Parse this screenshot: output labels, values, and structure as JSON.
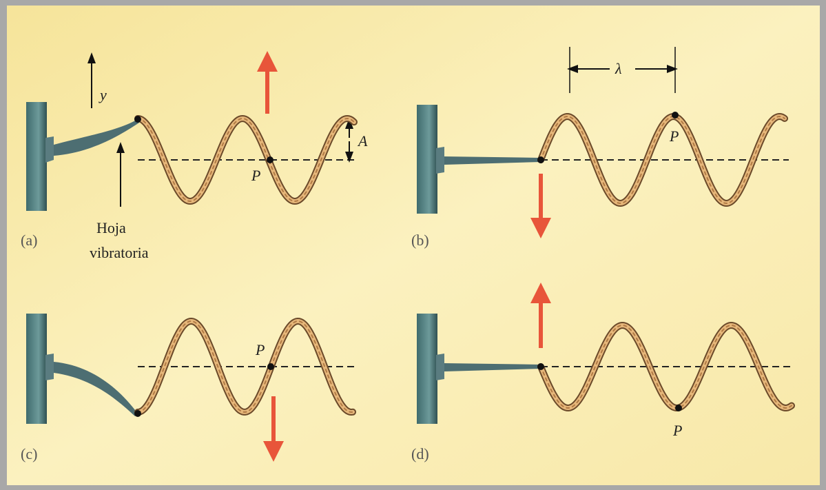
{
  "panels": [
    {
      "label": "(a)",
      "point": "P",
      "axis": "y",
      "amplitude": "A",
      "blade": [
        "Hoja",
        "vibratoria"
      ]
    },
    {
      "label": "(b)",
      "point": "P",
      "wavelength": "λ"
    },
    {
      "label": "(c)",
      "point": "P"
    },
    {
      "label": "(d)",
      "point": "P"
    }
  ]
}
